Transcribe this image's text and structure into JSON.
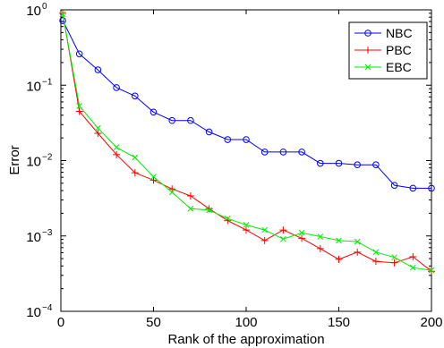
{
  "chart_data": {
    "type": "line",
    "title": "",
    "xlabel": "Rank of the approximation",
    "ylabel": "Error",
    "xlim": [
      0,
      200
    ],
    "ylim": [
      0.0001,
      1
    ],
    "yscale": "log",
    "grid": false,
    "legend_position": "top-right",
    "x_ticks": [
      0,
      50,
      100,
      150,
      200
    ],
    "y_ticks": [
      {
        "value": 1,
        "mantissa": "10",
        "exp": "0"
      },
      {
        "value": 0.1,
        "mantissa": "10",
        "exp": "−1"
      },
      {
        "value": 0.01,
        "mantissa": "10",
        "exp": "−2"
      },
      {
        "value": 0.001,
        "mantissa": "10",
        "exp": "−3"
      },
      {
        "value": 0.0001,
        "mantissa": "10",
        "exp": "−4"
      }
    ],
    "series": [
      {
        "name": "NBC",
        "color": "#0000ff",
        "marker": "circle",
        "x": [
          1,
          10,
          20,
          30,
          40,
          50,
          60,
          70,
          80,
          90,
          100,
          110,
          120,
          130,
          140,
          150,
          160,
          170,
          180,
          190,
          200
        ],
        "y": [
          0.72,
          0.26,
          0.16,
          0.093,
          0.072,
          0.044,
          0.034,
          0.034,
          0.024,
          0.019,
          0.019,
          0.013,
          0.013,
          0.013,
          0.0092,
          0.0092,
          0.0088,
          0.0088,
          0.0047,
          0.0043,
          0.0043
        ]
      },
      {
        "name": "PBC",
        "color": "#ff0000",
        "marker": "plus",
        "x": [
          1,
          10,
          20,
          30,
          40,
          50,
          60,
          70,
          80,
          90,
          100,
          110,
          120,
          130,
          140,
          150,
          160,
          170,
          180,
          190,
          200
        ],
        "y": [
          0.9,
          0.045,
          0.023,
          0.012,
          0.0069,
          0.0055,
          0.0042,
          0.0034,
          0.0023,
          0.0016,
          0.0012,
          0.00087,
          0.0012,
          0.00093,
          0.00068,
          0.00049,
          0.00061,
          0.00046,
          0.00044,
          0.00053,
          0.00034
        ]
      },
      {
        "name": "EBC",
        "color": "#00ee00",
        "marker": "x",
        "x": [
          1,
          10,
          20,
          30,
          40,
          50,
          60,
          70,
          80,
          90,
          100,
          110,
          120,
          130,
          140,
          150,
          160,
          170,
          180,
          190,
          200
        ],
        "y": [
          0.88,
          0.053,
          0.027,
          0.015,
          0.011,
          0.0061,
          0.0038,
          0.0023,
          0.0022,
          0.0017,
          0.0014,
          0.0012,
          0.00091,
          0.0011,
          0.00098,
          0.00087,
          0.00084,
          0.00061,
          0.00052,
          0.00038,
          0.00035
        ]
      }
    ]
  }
}
